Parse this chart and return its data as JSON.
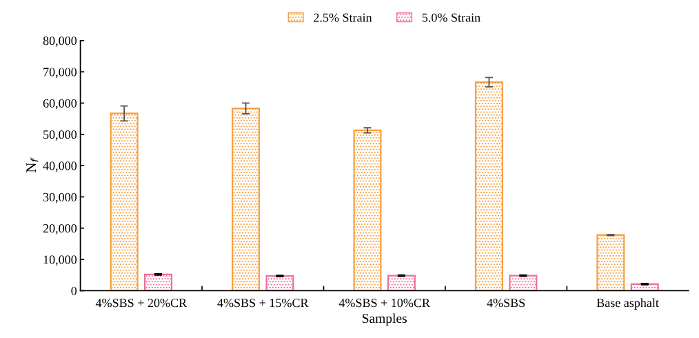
{
  "chart_data": {
    "type": "bar",
    "xlabel": "Samples",
    "ylabel": "N$_{f}$",
    "categories": [
      "4%SBS + 20%CR",
      "4%SBS + 15%CR",
      "4%SBS + 10%CR",
      "4%SBS",
      "Base asphalt"
    ],
    "series": [
      {
        "name": "2.5% Strain",
        "color": "#f5a040",
        "values": [
          56700,
          58300,
          51300,
          66700,
          17800
        ],
        "errors": [
          2400,
          1700,
          800,
          1500,
          200
        ]
      },
      {
        "name": "5.0% Strain",
        "color": "#f06e9b",
        "values": [
          5200,
          4700,
          4800,
          4800,
          2100
        ],
        "errors": [
          200,
          200,
          200,
          200,
          200
        ]
      }
    ],
    "ylim": [
      0,
      80000
    ],
    "yticks": [
      {
        "value": 0,
        "label": "0"
      },
      {
        "value": 10000,
        "label": "10,000"
      },
      {
        "value": 20000,
        "label": "20,000"
      },
      {
        "value": 30000,
        "label": "30,000"
      },
      {
        "value": 40000,
        "label": "40,000"
      },
      {
        "value": 50000,
        "label": "50,000"
      },
      {
        "value": 60000,
        "label": "60,000"
      },
      {
        "value": 70000,
        "label": "70,000"
      },
      {
        "value": 80000,
        "label": "80,000"
      }
    ],
    "legend": "top",
    "grid": false
  }
}
